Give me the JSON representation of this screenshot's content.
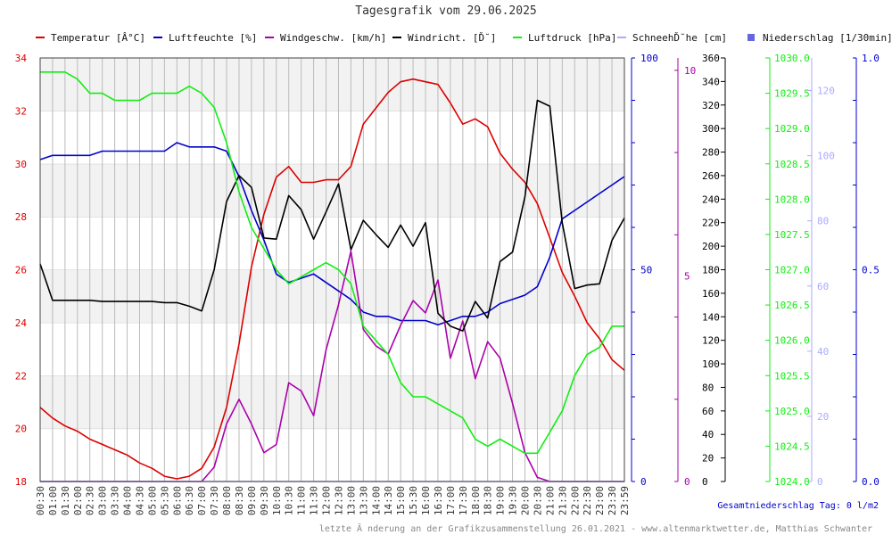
{
  "chart_data": {
    "type": "line",
    "title": "Tagesgrafik vom 29.06.2025",
    "legend": [
      {
        "label": "Temperatur [Â°C]",
        "color": "#dd0000",
        "style": "line"
      },
      {
        "label": "Luftfeuchte [%]",
        "color": "#0000cc",
        "style": "line"
      },
      {
        "label": "Windgeschw. [km/h]",
        "color": "#aa00aa",
        "style": "line"
      },
      {
        "label": "Windricht. [Ď˘]",
        "color": "#000000",
        "style": "line"
      },
      {
        "label": "Luftdruck [hPa]",
        "color": "#11ee11",
        "style": "line"
      },
      {
        "label": "SchneehĎ˘he [cm]",
        "color": "#aaaaff",
        "style": "line"
      },
      {
        "label": "Niederschlag [1/30min]",
        "color": "#6666dd",
        "style": "square"
      }
    ],
    "x": [
      "00:30",
      "01:00",
      "01:30",
      "02:00",
      "02:30",
      "03:00",
      "03:30",
      "04:00",
      "04:30",
      "05:00",
      "05:30",
      "06:00",
      "06:30",
      "07:00",
      "07:30",
      "08:00",
      "08:30",
      "09:00",
      "09:30",
      "10:00",
      "10:30",
      "11:00",
      "11:30",
      "12:00",
      "12:30",
      "13:00",
      "13:30",
      "14:00",
      "14:30",
      "15:00",
      "15:30",
      "16:00",
      "16:30",
      "17:00",
      "17:30",
      "18:00",
      "18:30",
      "19:00",
      "19:30",
      "20:00",
      "20:30",
      "21:00",
      "21:30",
      "22:00",
      "22:30",
      "23:00",
      "23:30",
      "23:59"
    ],
    "axes": {
      "temperature": {
        "ticks": [
          18,
          20,
          22,
          24,
          26,
          28,
          30,
          32,
          34
        ],
        "color": "#dd0000",
        "range": [
          18,
          34
        ]
      },
      "humidity": {
        "ticks": [
          0,
          50,
          100
        ],
        "color": "#0000cc",
        "range": [
          0,
          100
        ]
      },
      "wind_speed": {
        "ticks": [
          0,
          5,
          10
        ],
        "color": "#aa00aa",
        "range": [
          0,
          10.3
        ]
      },
      "wind_direction": {
        "ticks": [
          0,
          20,
          40,
          60,
          80,
          100,
          120,
          140,
          160,
          180,
          200,
          220,
          240,
          260,
          280,
          300,
          320,
          340,
          360
        ],
        "color": "#000000",
        "range": [
          0,
          360
        ]
      },
      "pressure": {
        "ticks": [
          "1024.0",
          "1024.5",
          "1025.0",
          "1025.5",
          "1026.0",
          "1026.5",
          "1027.0",
          "1027.5",
          "1028.0",
          "1028.5",
          "1029.0",
          "1029.5",
          "1030.0"
        ],
        "color": "#11ee11",
        "range": [
          1024,
          1030
        ]
      },
      "snow": {
        "ticks": [
          0,
          20,
          40,
          60,
          80,
          100,
          120
        ],
        "color": "#aaaaff",
        "range": [
          0,
          130
        ]
      },
      "precipitation": {
        "ticks": [
          "0.0",
          "0.5",
          "1.0"
        ],
        "color": "#0000cc",
        "range": [
          0,
          1
        ]
      }
    },
    "series": [
      {
        "name": "Temperatur [Â°C]",
        "axis": "temperature",
        "color": "#dd0000",
        "values": [
          20.8,
          20.4,
          20.1,
          19.9,
          19.6,
          19.4,
          19.2,
          19.0,
          18.7,
          18.5,
          18.2,
          18.1,
          18.2,
          18.5,
          19.3,
          20.8,
          23.2,
          26.1,
          28.1,
          29.5,
          29.9,
          29.3,
          29.3,
          29.4,
          29.4,
          29.9,
          31.5,
          32.1,
          32.7,
          33.1,
          33.2,
          33.1,
          33.0,
          32.3,
          31.5,
          31.7,
          31.4,
          30.4,
          29.8,
          29.3,
          28.5,
          27.2,
          25.9,
          25.0,
          24.0,
          23.4,
          22.6,
          22.2
        ]
      },
      {
        "name": "Luftfeuchte [%]",
        "axis": "humidity",
        "color": "#0000cc",
        "values": [
          76,
          77,
          77,
          77,
          77,
          78,
          78,
          78,
          78,
          78,
          78,
          80,
          79,
          79,
          79,
          78,
          72,
          64,
          57,
          49,
          47,
          48,
          49,
          47,
          45,
          43,
          40,
          39,
          39,
          38,
          38,
          38,
          37,
          38,
          39,
          39,
          40,
          42,
          43,
          44,
          46,
          53,
          62,
          64,
          66,
          68,
          70,
          72
        ]
      },
      {
        "name": "Windgeschw. [km/h]",
        "axis": "wind_speed",
        "color": "#aa00aa",
        "values": [
          0,
          0,
          0,
          0,
          0,
          0,
          0,
          0,
          0,
          0,
          0,
          0,
          0,
          0,
          0.35,
          1.4,
          2.0,
          1.4,
          0.7,
          0.9,
          2.4,
          2.2,
          1.6,
          3.2,
          4.3,
          5.6,
          3.7,
          3.3,
          3.1,
          3.8,
          4.4,
          4.1,
          4.9,
          3.0,
          3.9,
          2.5,
          3.4,
          3.0,
          1.9,
          0.7,
          0.1,
          0,
          0,
          0,
          0,
          0,
          0,
          0
        ]
      },
      {
        "name": "Windricht. [Ď˘]",
        "axis": "wind_direction",
        "color": "#000000",
        "values": [
          185,
          154,
          154,
          154,
          154,
          153,
          153,
          153,
          153,
          153,
          152,
          152,
          149,
          145,
          180,
          238,
          260,
          250,
          207,
          206,
          243,
          231,
          206,
          229,
          253,
          197,
          222,
          210,
          199,
          218,
          200,
          220,
          143,
          132,
          128,
          153,
          139,
          187,
          195,
          242,
          324,
          319,
          220,
          164,
          167,
          168,
          205,
          224
        ]
      },
      {
        "name": "Luftdruck [hPa]",
        "axis": "pressure",
        "color": "#11ee11",
        "values": [
          1029.8,
          1029.8,
          1029.8,
          1029.7,
          1029.5,
          1029.5,
          1029.4,
          1029.4,
          1029.4,
          1029.5,
          1029.5,
          1029.5,
          1029.6,
          1029.5,
          1029.3,
          1028.8,
          1028.1,
          1027.6,
          1027.3,
          1027.0,
          1026.8,
          1026.9,
          1027.0,
          1027.1,
          1027.0,
          1026.8,
          1026.2,
          1026.0,
          1025.8,
          1025.4,
          1025.2,
          1025.2,
          1025.1,
          1025.0,
          1024.9,
          1024.6,
          1024.5,
          1024.6,
          1024.5,
          1024.4,
          1024.4,
          1024.7,
          1025.0,
          1025.5,
          1025.8,
          1025.9,
          1026.2,
          1026.2
        ]
      },
      {
        "name": "SchneehĎ˘he [cm]",
        "axis": "snow",
        "color": "#aaaaff",
        "values": [
          0,
          0,
          0,
          0,
          0,
          0,
          0,
          0,
          0,
          0,
          0,
          0,
          0,
          0,
          0,
          0,
          0,
          0,
          0,
          0,
          0,
          0,
          0,
          0,
          0,
          0,
          0,
          0,
          0,
          0,
          0,
          0,
          0,
          0,
          0,
          0,
          0,
          0,
          0,
          0,
          0,
          0,
          0,
          0,
          0,
          0,
          0,
          0
        ]
      }
    ],
    "grid": true,
    "footer_total": "Gesamtniederschlag Tag: 0 l/m2",
    "credit": "letzte Ă nderung an der Grafikzusammenstellung 26.01.2021 - www.altenmarktwetter.de, Matthias Schwanter"
  }
}
